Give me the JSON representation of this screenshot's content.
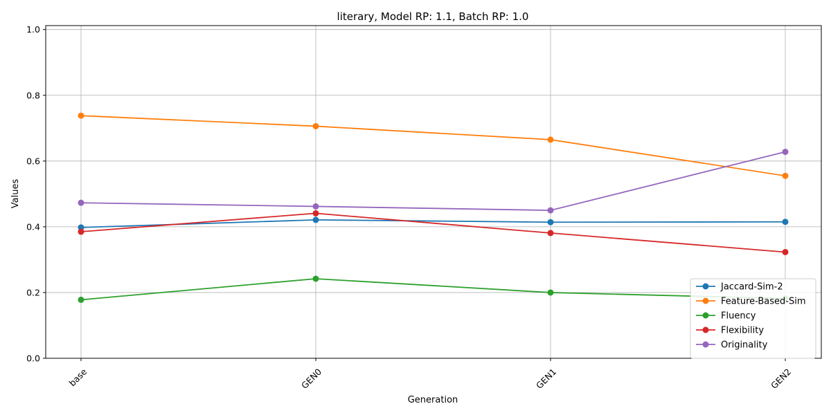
{
  "chart_data": {
    "type": "line",
    "title": "literary, Model RP: 1.1, Batch RP: 1.0",
    "xlabel": "Generation",
    "ylabel": "Values",
    "categories": [
      "base",
      "GEN0",
      "GEN1",
      "GEN2"
    ],
    "ylim": [
      0,
      1.0
    ],
    "yticks": [
      "0.0",
      "0.2",
      "0.4",
      "0.6",
      "0.8",
      "1.0"
    ],
    "grid": true,
    "legend_position": "lower-right",
    "series": [
      {
        "name": "Jaccard-Sim-2",
        "color": "#1f77b4",
        "values": [
          0.398,
          0.421,
          0.414,
          0.415
        ]
      },
      {
        "name": "Feature-Based-Sim",
        "color": "#ff7f0e",
        "values": [
          0.738,
          0.706,
          0.665,
          0.555
        ]
      },
      {
        "name": "Fluency",
        "color": "#2ca02c",
        "values": [
          0.178,
          0.242,
          0.2,
          0.182
        ]
      },
      {
        "name": "Flexibility",
        "color": "#d62728",
        "values": [
          0.385,
          0.441,
          0.381,
          0.323
        ]
      },
      {
        "name": "Originality",
        "color": "#9467bd",
        "values": [
          0.473,
          0.462,
          0.45,
          0.628
        ]
      }
    ]
  }
}
